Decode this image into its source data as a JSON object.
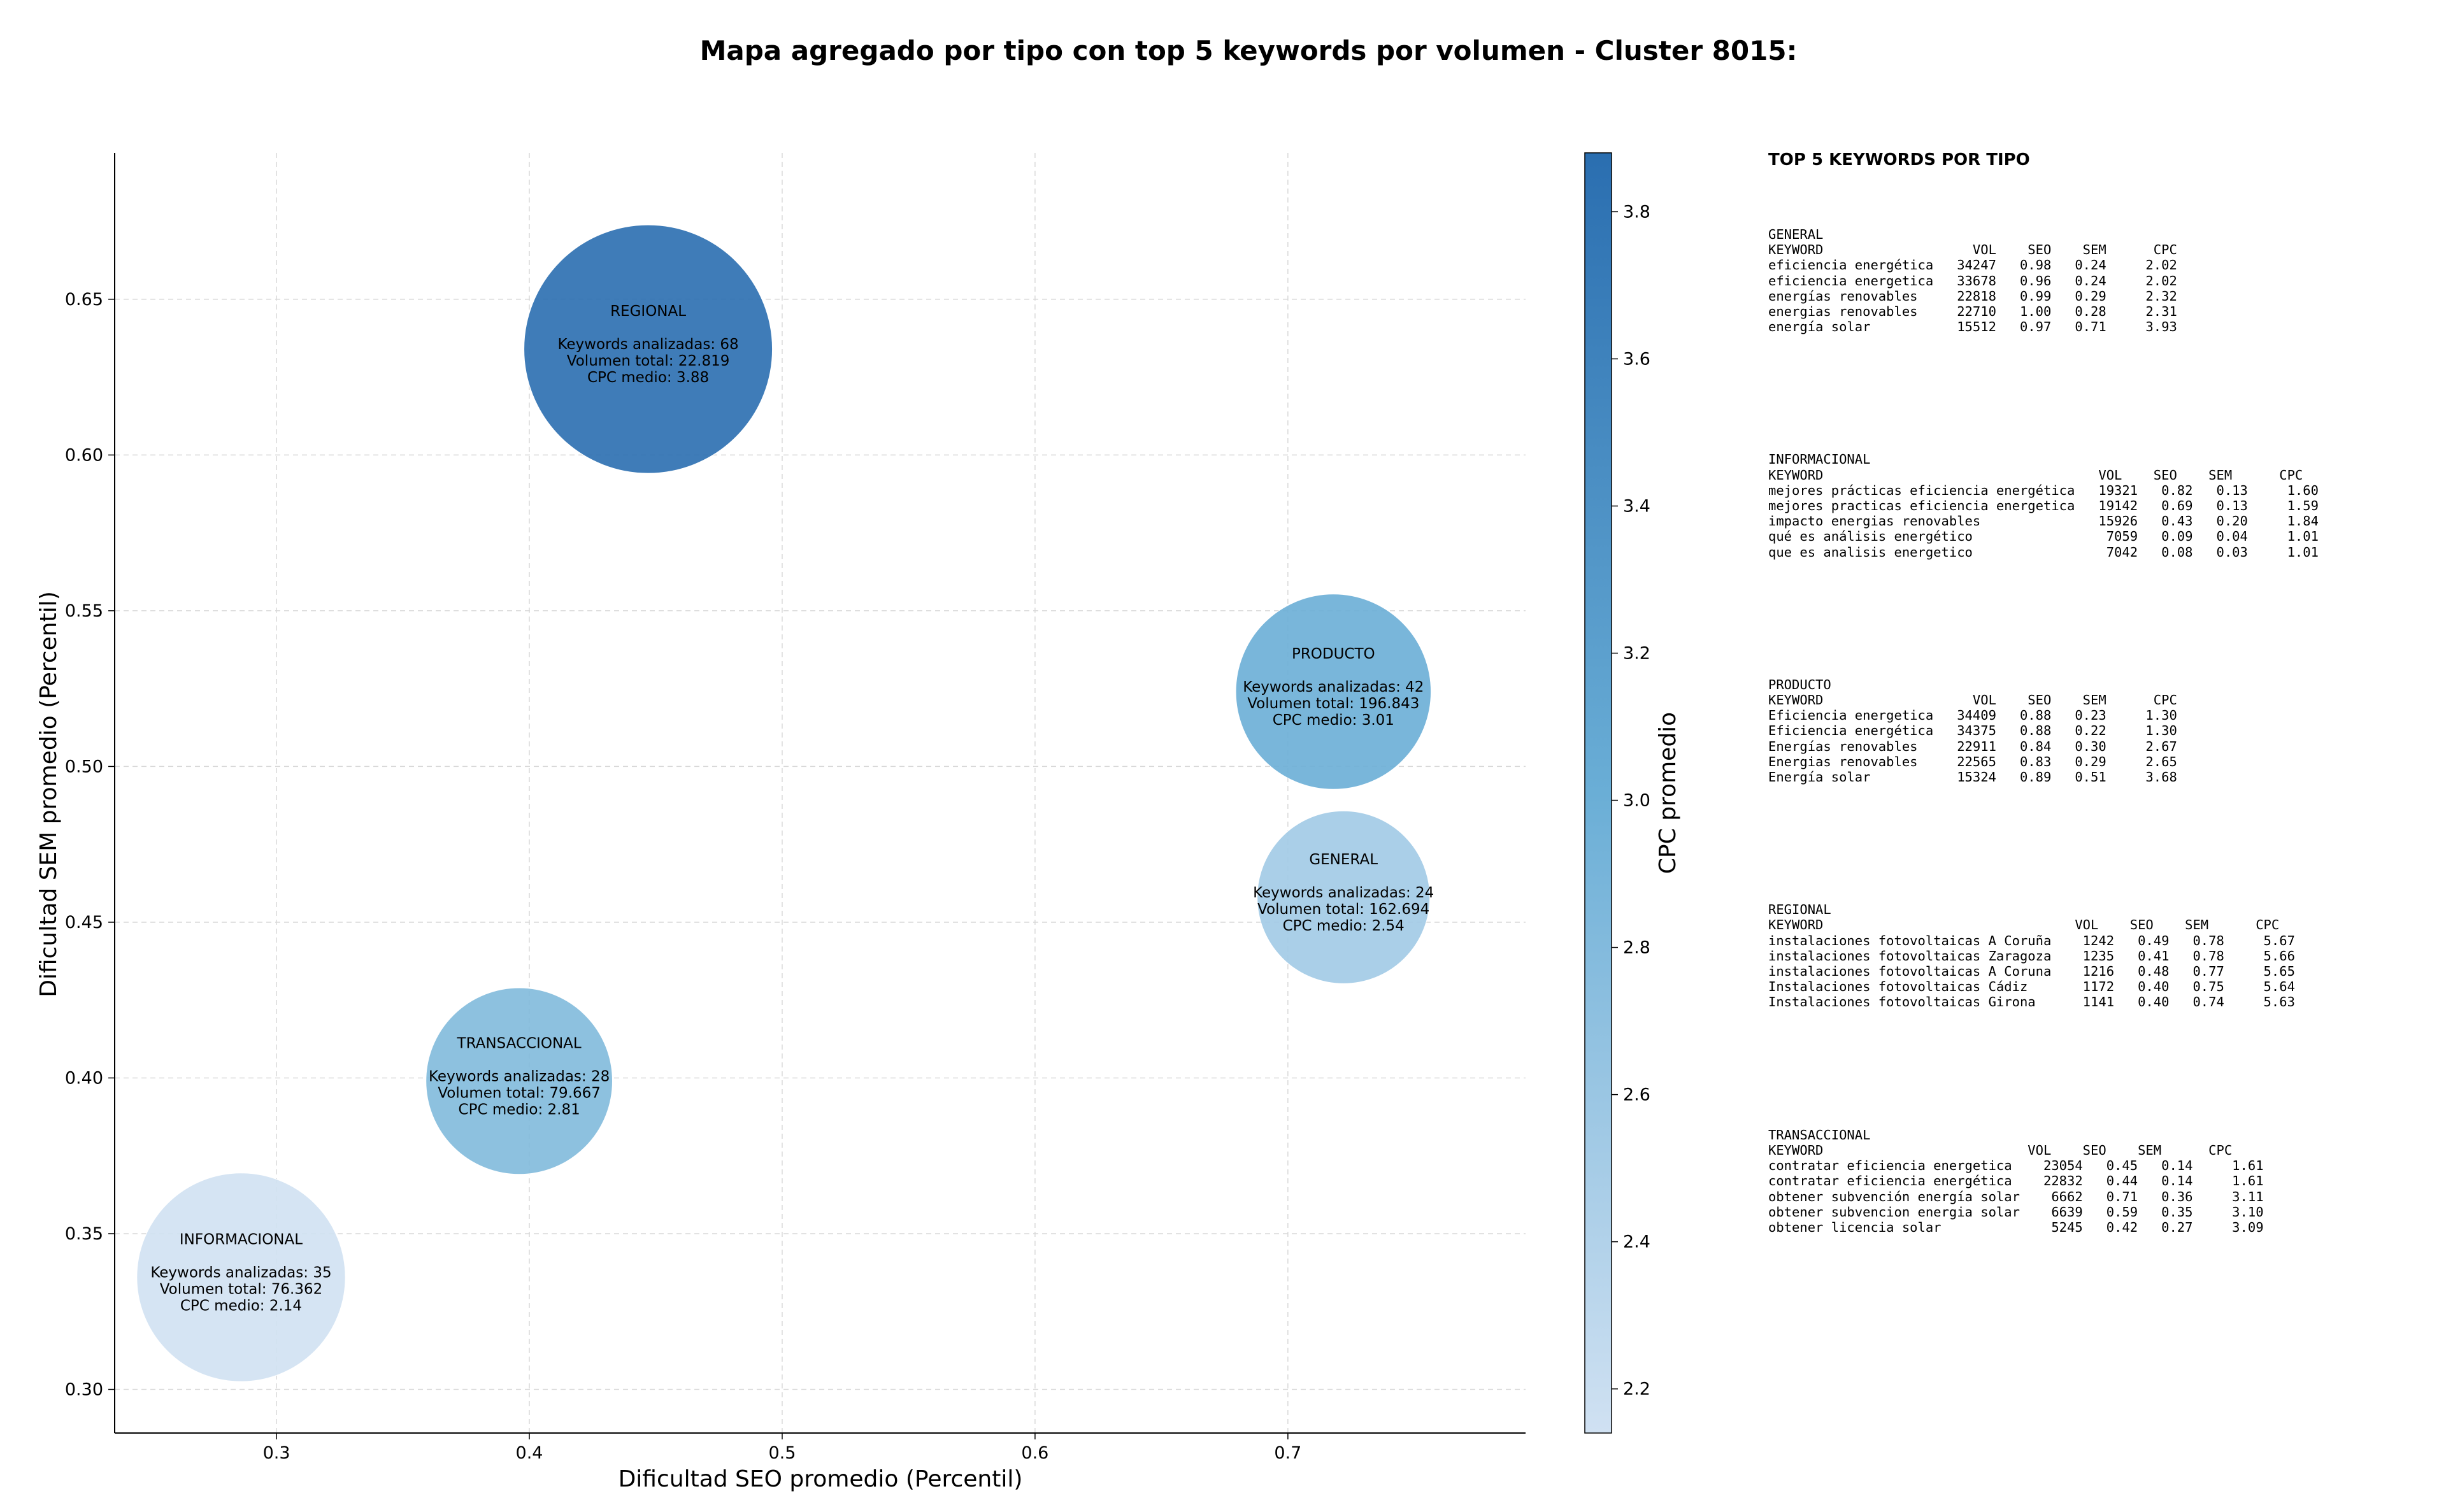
{
  "title": "Mapa agregado por tipo con top 5 keywords por volumen - Cluster 8015:",
  "chart_data": {
    "type": "scatter",
    "title": "Mapa agregado por tipo con top 5 keywords por volumen - Cluster 8015:",
    "xlabel": "Dificultad SEO promedio (Percentil)",
    "ylabel": "Dificultad SEM promedio (Percentil)",
    "xlim": [
      0.236,
      0.794
    ],
    "ylim": [
      0.286,
      0.697
    ],
    "xticks": [
      "0.3",
      "0.4",
      "0.5",
      "0.6",
      "0.7"
    ],
    "yticks": [
      "0.30",
      "0.35",
      "0.40",
      "0.45",
      "0.50",
      "0.55",
      "0.60",
      "0.65"
    ],
    "grid": true,
    "colorbar": {
      "label": "CPC promedio",
      "min": 2.14,
      "max": 3.88,
      "ticks": [
        "2.2",
        "2.4",
        "2.6",
        "2.8",
        "3.0",
        "3.2",
        "3.4",
        "3.6",
        "3.8"
      ]
    },
    "bubbles": [
      {
        "name": "REGIONAL",
        "x": 0.447,
        "y": 0.634,
        "keywords_label": "Keywords analizadas: 68",
        "volume_label": "Volumen total: 22.819",
        "cpc_label": "CPC medio: 3.88",
        "cpc": 3.88,
        "keywords": 68,
        "volume": 22819
      },
      {
        "name": "PRODUCTO",
        "x": 0.718,
        "y": 0.524,
        "keywords_label": "Keywords analizadas: 42",
        "volume_label": "Volumen total: 196.843",
        "cpc_label": "CPC medio: 3.01",
        "cpc": 3.01,
        "keywords": 42,
        "volume": 196843
      },
      {
        "name": "GENERAL",
        "x": 0.722,
        "y": 0.458,
        "keywords_label": "Keywords analizadas: 24",
        "volume_label": "Volumen total: 162.694",
        "cpc_label": "CPC medio: 2.54",
        "cpc": 2.54,
        "keywords": 24,
        "volume": 162694
      },
      {
        "name": "TRANSACCIONAL",
        "x": 0.396,
        "y": 0.399,
        "keywords_label": "Keywords analizadas: 28",
        "volume_label": "Volumen total: 79.667",
        "cpc_label": "CPC medio: 2.81",
        "cpc": 2.81,
        "keywords": 28,
        "volume": 79667
      },
      {
        "name": "INFORMACIONAL",
        "x": 0.286,
        "y": 0.336,
        "keywords_label": "Keywords analizadas: 35",
        "volume_label": "Volumen total: 76.362",
        "cpc_label": "CPC medio: 2.14",
        "cpc": 2.14,
        "keywords": 35,
        "volume": 76362
      }
    ]
  },
  "side_panel": {
    "title": "TOP 5 KEYWORDS POR TIPO",
    "groups": [
      {
        "name": "GENERAL",
        "text": "GENERAL\nKEYWORD                   VOL    SEO    SEM      CPC\neficiencia energética   34247   0.98   0.24     2.02\neficiencia energetica   33678   0.96   0.24     2.02\nenergías renovables     22818   0.99   0.29     2.32\nenergias renovables     22710   1.00   0.28     2.31\nenergía solar           15512   0.97   0.71     3.93"
      },
      {
        "name": "INFORMACIONAL",
        "text": "INFORMACIONAL\nKEYWORD                                   VOL    SEO    SEM      CPC\nmejores prácticas eficiencia energética   19321   0.82   0.13     1.60\nmejores practicas eficiencia energetica   19142   0.69   0.13     1.59\nimpacto energias renovables               15926   0.43   0.20     1.84\nqué es análisis energético                 7059   0.09   0.04     1.01\nque es analisis energetico                 7042   0.08   0.03     1.01"
      },
      {
        "name": "PRODUCTO",
        "text": "PRODUCTO\nKEYWORD                   VOL    SEO    SEM      CPC\nEficiencia energetica   34409   0.88   0.23     1.30\nEficiencia energética   34375   0.88   0.22     1.30\nEnergías renovables     22911   0.84   0.30     2.67\nEnergias renovables     22565   0.83   0.29     2.65\nEnergía solar           15324   0.89   0.51     3.68"
      },
      {
        "name": "REGIONAL",
        "text": "REGIONAL\nKEYWORD                                VOL    SEO    SEM      CPC\ninstalaciones fotovoltaicas A Coruña    1242   0.49   0.78     5.67\ninstalaciones fotovoltaicas Zaragoza    1235   0.41   0.78     5.66\ninstalaciones fotovoltaicas A Coruna    1216   0.48   0.77     5.65\nInstalaciones fotovoltaicas Cádiz       1172   0.40   0.75     5.64\nInstalaciones fotovoltaicas Girona      1141   0.40   0.74     5.63"
      },
      {
        "name": "TRANSACCIONAL",
        "text": "TRANSACCIONAL\nKEYWORD                          VOL    SEO    SEM      CPC\ncontratar eficiencia energetica    23054   0.45   0.14     1.61\ncontratar eficiencia energética    22832   0.44   0.14     1.61\nobtener subvención energía solar    6662   0.71   0.36     3.11\nobtener subvencion energia solar    6639   0.59   0.35     3.10\nobtener licencia solar              5245   0.42   0.27     3.09"
      }
    ]
  }
}
